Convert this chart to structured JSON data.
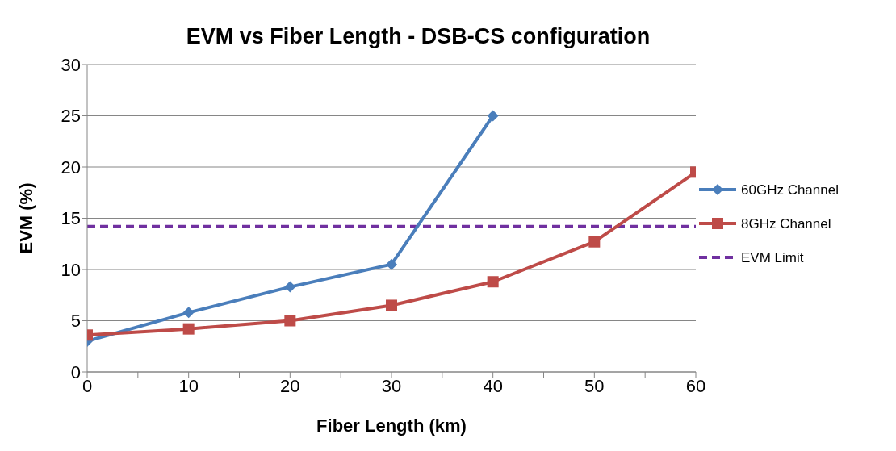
{
  "chart_data": {
    "type": "line",
    "title": "EVM vs Fiber Length - DSB-CS configuration",
    "xlabel": "Fiber Length (km)",
    "ylabel": "EVM (%)",
    "x": [
      0,
      10,
      20,
      30,
      40,
      50,
      60
    ],
    "series": [
      {
        "name": "60GHz Channel",
        "color": "#4a7ebb",
        "marker": "diamond",
        "values": [
          3.0,
          5.8,
          8.3,
          10.5,
          25,
          null,
          null
        ]
      },
      {
        "name": "8GHz Channel",
        "color": "#be4b48",
        "marker": "square",
        "values": [
          3.6,
          4.2,
          5.0,
          6.5,
          8.8,
          12.7,
          19.5
        ]
      }
    ],
    "ref_lines": [
      {
        "axis": "y",
        "value": 14.2,
        "label": "EVM Limit",
        "color": "#7030a0",
        "line_style": "dashed"
      }
    ],
    "xlim": [
      0,
      60
    ],
    "xticks": [
      0,
      {
        "value": 5,
        "label": null
      },
      10,
      {
        "value": 15,
        "label": null
      },
      20,
      {
        "value": 25,
        "label": null
      },
      30,
      {
        "value": 35,
        "label": null
      },
      40,
      {
        "value": 45,
        "label": null
      },
      50,
      {
        "value": 55,
        "label": null
      },
      60
    ],
    "ylim": [
      0,
      30
    ],
    "yticks": [
      0,
      5,
      10,
      15,
      20,
      25,
      30
    ],
    "grid": "y",
    "legend": "right",
    "line_style": "solid"
  }
}
